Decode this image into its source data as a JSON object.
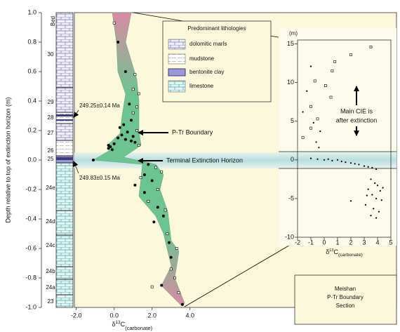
{
  "chart_data": [
    {
      "type": "scatter",
      "y_label": "Depth relative to top of extinction horizon (m)",
      "x_label": {
        "delta": "δ",
        "sup": "13",
        "main": "C",
        "sub": "(carbonate)"
      },
      "ylim": [
        -1,
        1
      ],
      "yticks": [
        {
          "value": -1,
          "label": "-1.0"
        },
        -0.8,
        -0.6,
        -0.4,
        -0.2,
        {
          "value": 0,
          "label": "0.0"
        },
        0.2,
        0.4,
        0.6,
        0.8,
        {
          "value": 1,
          "label": "1.0"
        }
      ],
      "xlim": [
        -2.1,
        14.9
      ],
      "xticks": [
        {
          "value": -2,
          "label": "-2.0"
        },
        {
          "value": 0,
          "label": "0.0"
        },
        {
          "value": 2,
          "label": "2.0"
        },
        {
          "value": 4,
          "label": "4.0"
        }
      ],
      "series": [
        {
          "marker": "circle",
          "color": "#000000",
          "x": [
            0.2,
            0.6,
            0.8,
            0.9,
            0.5,
            0.3,
            0.7,
            0.4,
            1.0,
            0.2,
            0.6,
            0.9,
            1.1,
            0.0,
            -0.3,
            -0.2,
            -0.3,
            -0.1,
            -1.1,
            1.8,
            1.6,
            2.0,
            1.1,
            1.6,
            2.3,
            2.6,
            2.1,
            2.9,
            3.0,
            2.5,
            3.6
          ],
          "y": [
            0.8,
            0.6,
            0.38,
            0.27,
            0.24,
            0.22,
            0.19,
            0.17,
            0.16,
            0.15,
            0.14,
            0.13,
            0.12,
            0.11,
            0.1,
            0.09,
            0.08,
            0.07,
            0.0,
            -0.03,
            -0.1,
            -0.14,
            -0.17,
            -0.22,
            -0.32,
            -0.38,
            -0.42,
            -0.56,
            -0.66,
            -0.85,
            -0.98
          ]
        },
        {
          "marker": "square",
          "color": "#ffffff",
          "x": [
            0.0,
            1.1,
            1.0,
            1.3,
            1.2,
            1.0,
            1.2,
            1.3,
            2.2,
            2.5,
            1.4,
            2.3,
            1.8,
            2.7,
            2.8,
            3.3,
            3.0,
            3.2,
            2.0,
            3.4
          ],
          "y": [
            0.93,
            0.58,
            0.48,
            0.45,
            0.36,
            0.32,
            0.2,
            0.1,
            -0.05,
            -0.08,
            -0.12,
            -0.2,
            -0.28,
            -0.34,
            -0.5,
            -0.6,
            -0.74,
            -0.8,
            -0.86,
            -0.9
          ]
        }
      ],
      "lithology_column": {
        "header": "Bed",
        "beds": [
          "30",
          "29",
          "28",
          "27",
          "26",
          "25",
          "24e",
          "24d",
          "24c",
          "24b",
          "24a",
          "23"
        ]
      },
      "annotations": [
        "249.25±0.14 Ma",
        "249.83±0.15 Ma",
        "P-Tr Boundary",
        "Terminal Extinction Horizon"
      ],
      "legend": {
        "title": "Predominant lithologies",
        "items": [
          "dolomitic marls",
          "mudstone",
          "bentonite clay",
          "limestone"
        ]
      },
      "caption": [
        "Meishan",
        "P-Tr Boundary",
        "Section"
      ]
    },
    {
      "type": "scatter",
      "y_label": "(m)",
      "x_label": {
        "delta": "δ",
        "sup": "13",
        "main": "C",
        "sub": "(carbonate)"
      },
      "xlim": [
        -2,
        5
      ],
      "xticks": [
        -2,
        -1,
        0,
        1,
        2,
        3,
        4,
        5
      ],
      "ylim": [
        -10,
        15.5
      ],
      "yticks": [
        -10,
        -5,
        0,
        5,
        10,
        15
      ],
      "annotation": [
        "Main CIE is",
        "after extinction"
      ],
      "series": [
        {
          "marker": "square",
          "color": "#ffffff",
          "x": [
            3.5,
            2.0,
            0.8,
            0.6,
            -0.7,
            0.1,
            0.5,
            -1.0,
            -0.5,
            -1.0,
            -1.6
          ],
          "y": [
            14.6,
            13.6,
            12.7,
            11.5,
            10.2,
            9.6,
            8.1,
            6.9,
            5.3,
            4.1,
            2.9
          ]
        },
        {
          "marker": "circle",
          "color": "#000000",
          "x": [
            -1.0,
            -1.3,
            -1.6,
            -0.8,
            -0.3,
            -0.6,
            -0.4,
            -1.0,
            -0.5,
            0.0,
            0.3,
            0.6,
            1.0,
            1.3,
            1.6,
            2.0,
            2.3,
            2.6,
            3.0,
            3.3,
            3.6,
            3.9,
            3.5,
            3.8,
            4.0,
            3.3,
            4.2,
            3.6,
            3.9,
            4.3,
            3.1,
            3.7,
            4.1,
            3.5,
            3.9,
            2.0,
            4.4,
            3.2
          ],
          "y": [
            12.1,
            8.9,
            6.2,
            4.8,
            3.7,
            2.3,
            1.6,
            0.2,
            0.1,
            0.0,
            0.1,
            -0.1,
            0.0,
            -0.2,
            -0.3,
            -0.4,
            -0.5,
            -0.6,
            -0.8,
            -0.9,
            -1.0,
            -1.2,
            -2.5,
            -3.0,
            -3.3,
            -3.8,
            -4.0,
            -4.5,
            -5.0,
            -5.2,
            -5.8,
            -6.3,
            -6.7,
            -7.2,
            -7.5,
            -5.3,
            -3.6,
            -4.6
          ]
        }
      ]
    }
  ]
}
